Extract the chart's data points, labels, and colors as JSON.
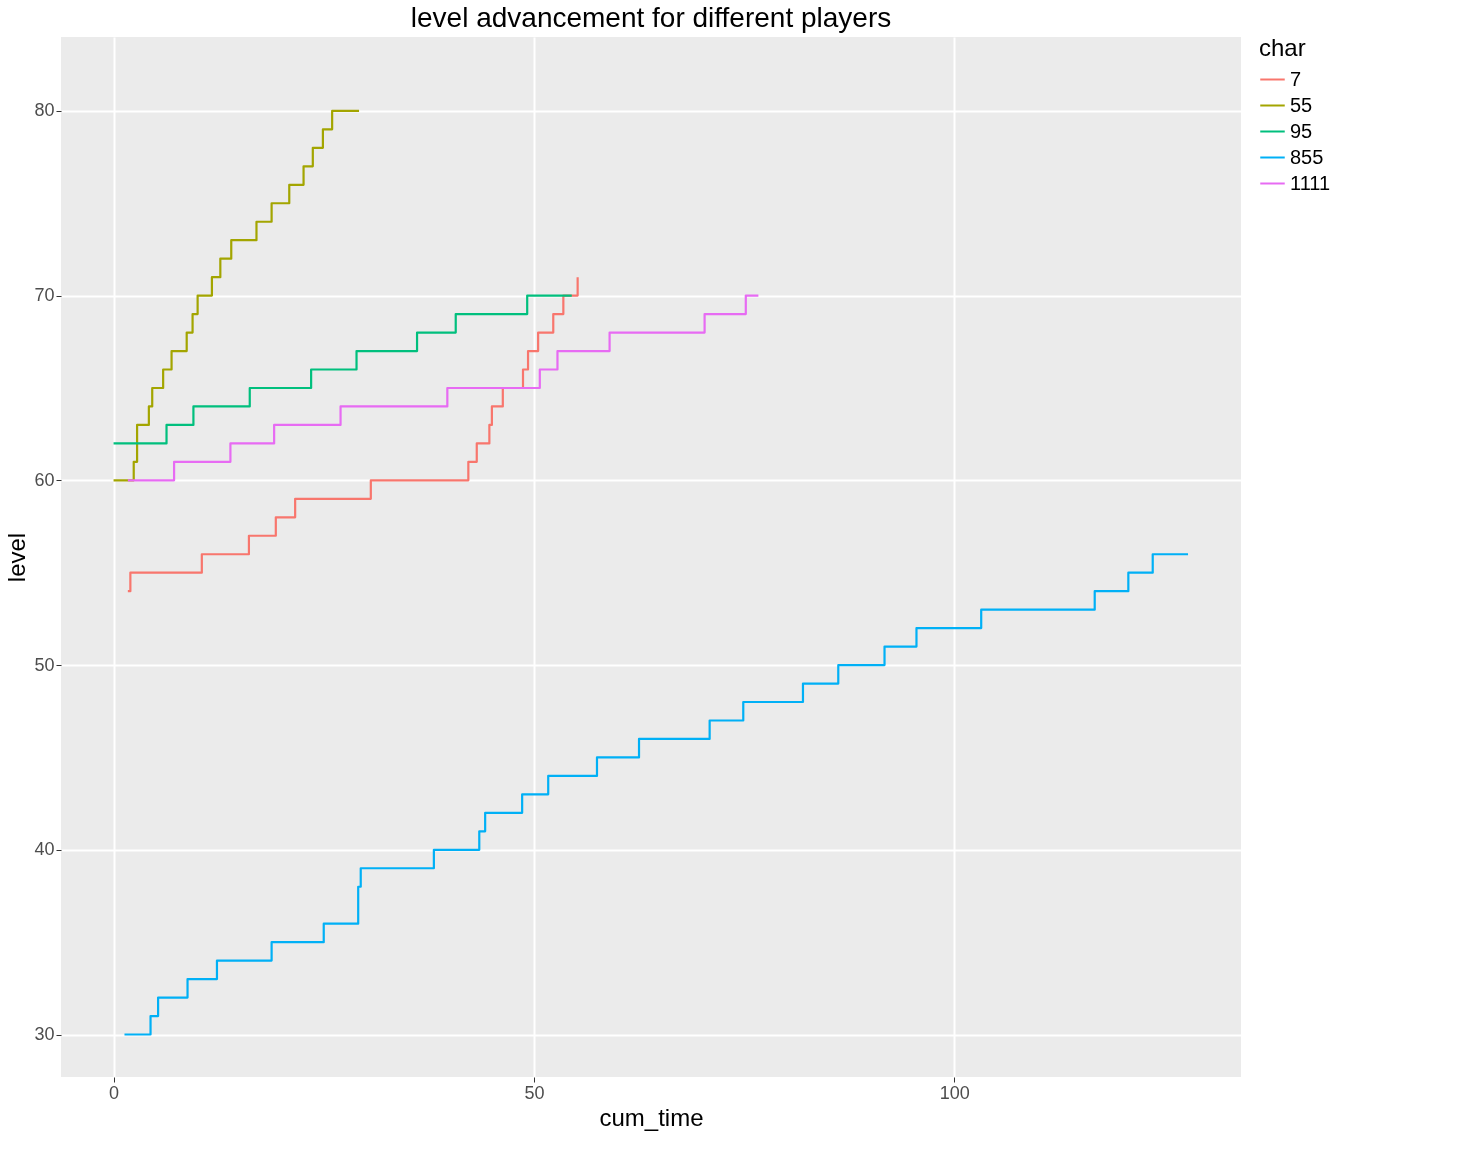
{
  "chart_data": {
    "type": "step",
    "title": "level advancement for different players",
    "xlabel": "cum_time",
    "ylabel": "level",
    "legend_title": "char",
    "legend": "right",
    "grid": true,
    "xlim": [
      -6.25,
      134.1
    ],
    "ylim": [
      27.7,
      84
    ],
    "xticks": [
      0,
      50,
      100
    ],
    "yticks": [
      30,
      40,
      50,
      60,
      70,
      80
    ],
    "series": [
      {
        "name": "7",
        "color": "#f8766d",
        "x": [
          1.7,
          2.0,
          10.5,
          16.1,
          19.3,
          21.6,
          30.6,
          42.2,
          43.2,
          44.7,
          45.0,
          46.3,
          48.7,
          49.3,
          50.5,
          52.3,
          53.5,
          55.2
        ],
        "values": [
          54,
          55,
          56,
          57,
          58,
          59,
          60,
          61,
          62,
          63,
          64,
          65,
          66,
          67,
          68,
          69,
          70,
          71
        ]
      },
      {
        "name": "55",
        "color": "#a3a500",
        "x": [
          0,
          2.4,
          2.8,
          4.2,
          4.6,
          5.9,
          6.9,
          8.7,
          9.4,
          10.0,
          11.7,
          12.7,
          14.0,
          17.0,
          18.8,
          20.9,
          22.6,
          23.7,
          24.9,
          26.0,
          29.2
        ],
        "values": [
          60,
          61,
          63,
          64,
          65,
          66,
          67,
          68,
          69,
          70,
          71,
          72,
          73,
          74,
          75,
          76,
          77,
          78,
          79,
          80,
          80
        ]
      },
      {
        "name": "95",
        "color": "#00bf7d",
        "x": [
          0,
          6.3,
          9.5,
          16.2,
          23.5,
          28.9,
          36.1,
          40.7,
          49.2,
          54.5
        ],
        "values": [
          62,
          63,
          64,
          65,
          66,
          67,
          68,
          69,
          70,
          70
        ]
      },
      {
        "name": "855",
        "color": "#00b0f6",
        "x": [
          1.3,
          4.4,
          5.3,
          8.8,
          12.3,
          18.8,
          25.0,
          29.1,
          29.4,
          38.1,
          43.5,
          44.2,
          48.6,
          51.7,
          57.5,
          62.5,
          70.9,
          74.9,
          82.0,
          86.2,
          91.7,
          95.5,
          103.2,
          116.7,
          120.7,
          123.6,
          127.8
        ],
        "values": [
          30,
          31,
          32,
          33,
          34,
          35,
          36,
          38,
          39,
          40,
          41,
          42,
          43,
          44,
          45,
          46,
          47,
          48,
          49,
          50,
          51,
          52,
          53,
          54,
          55,
          56,
          56
        ]
      },
      {
        "name": "1111",
        "color": "#e76bf3",
        "x": [
          1.7,
          7.2,
          13.9,
          19.1,
          27.0,
          39.7,
          50.7,
          52.8,
          59.0,
          70.3,
          75.2,
          76.7
        ],
        "values": [
          60,
          61,
          62,
          63,
          64,
          65,
          66,
          67,
          68,
          69,
          70,
          70
        ]
      }
    ]
  }
}
